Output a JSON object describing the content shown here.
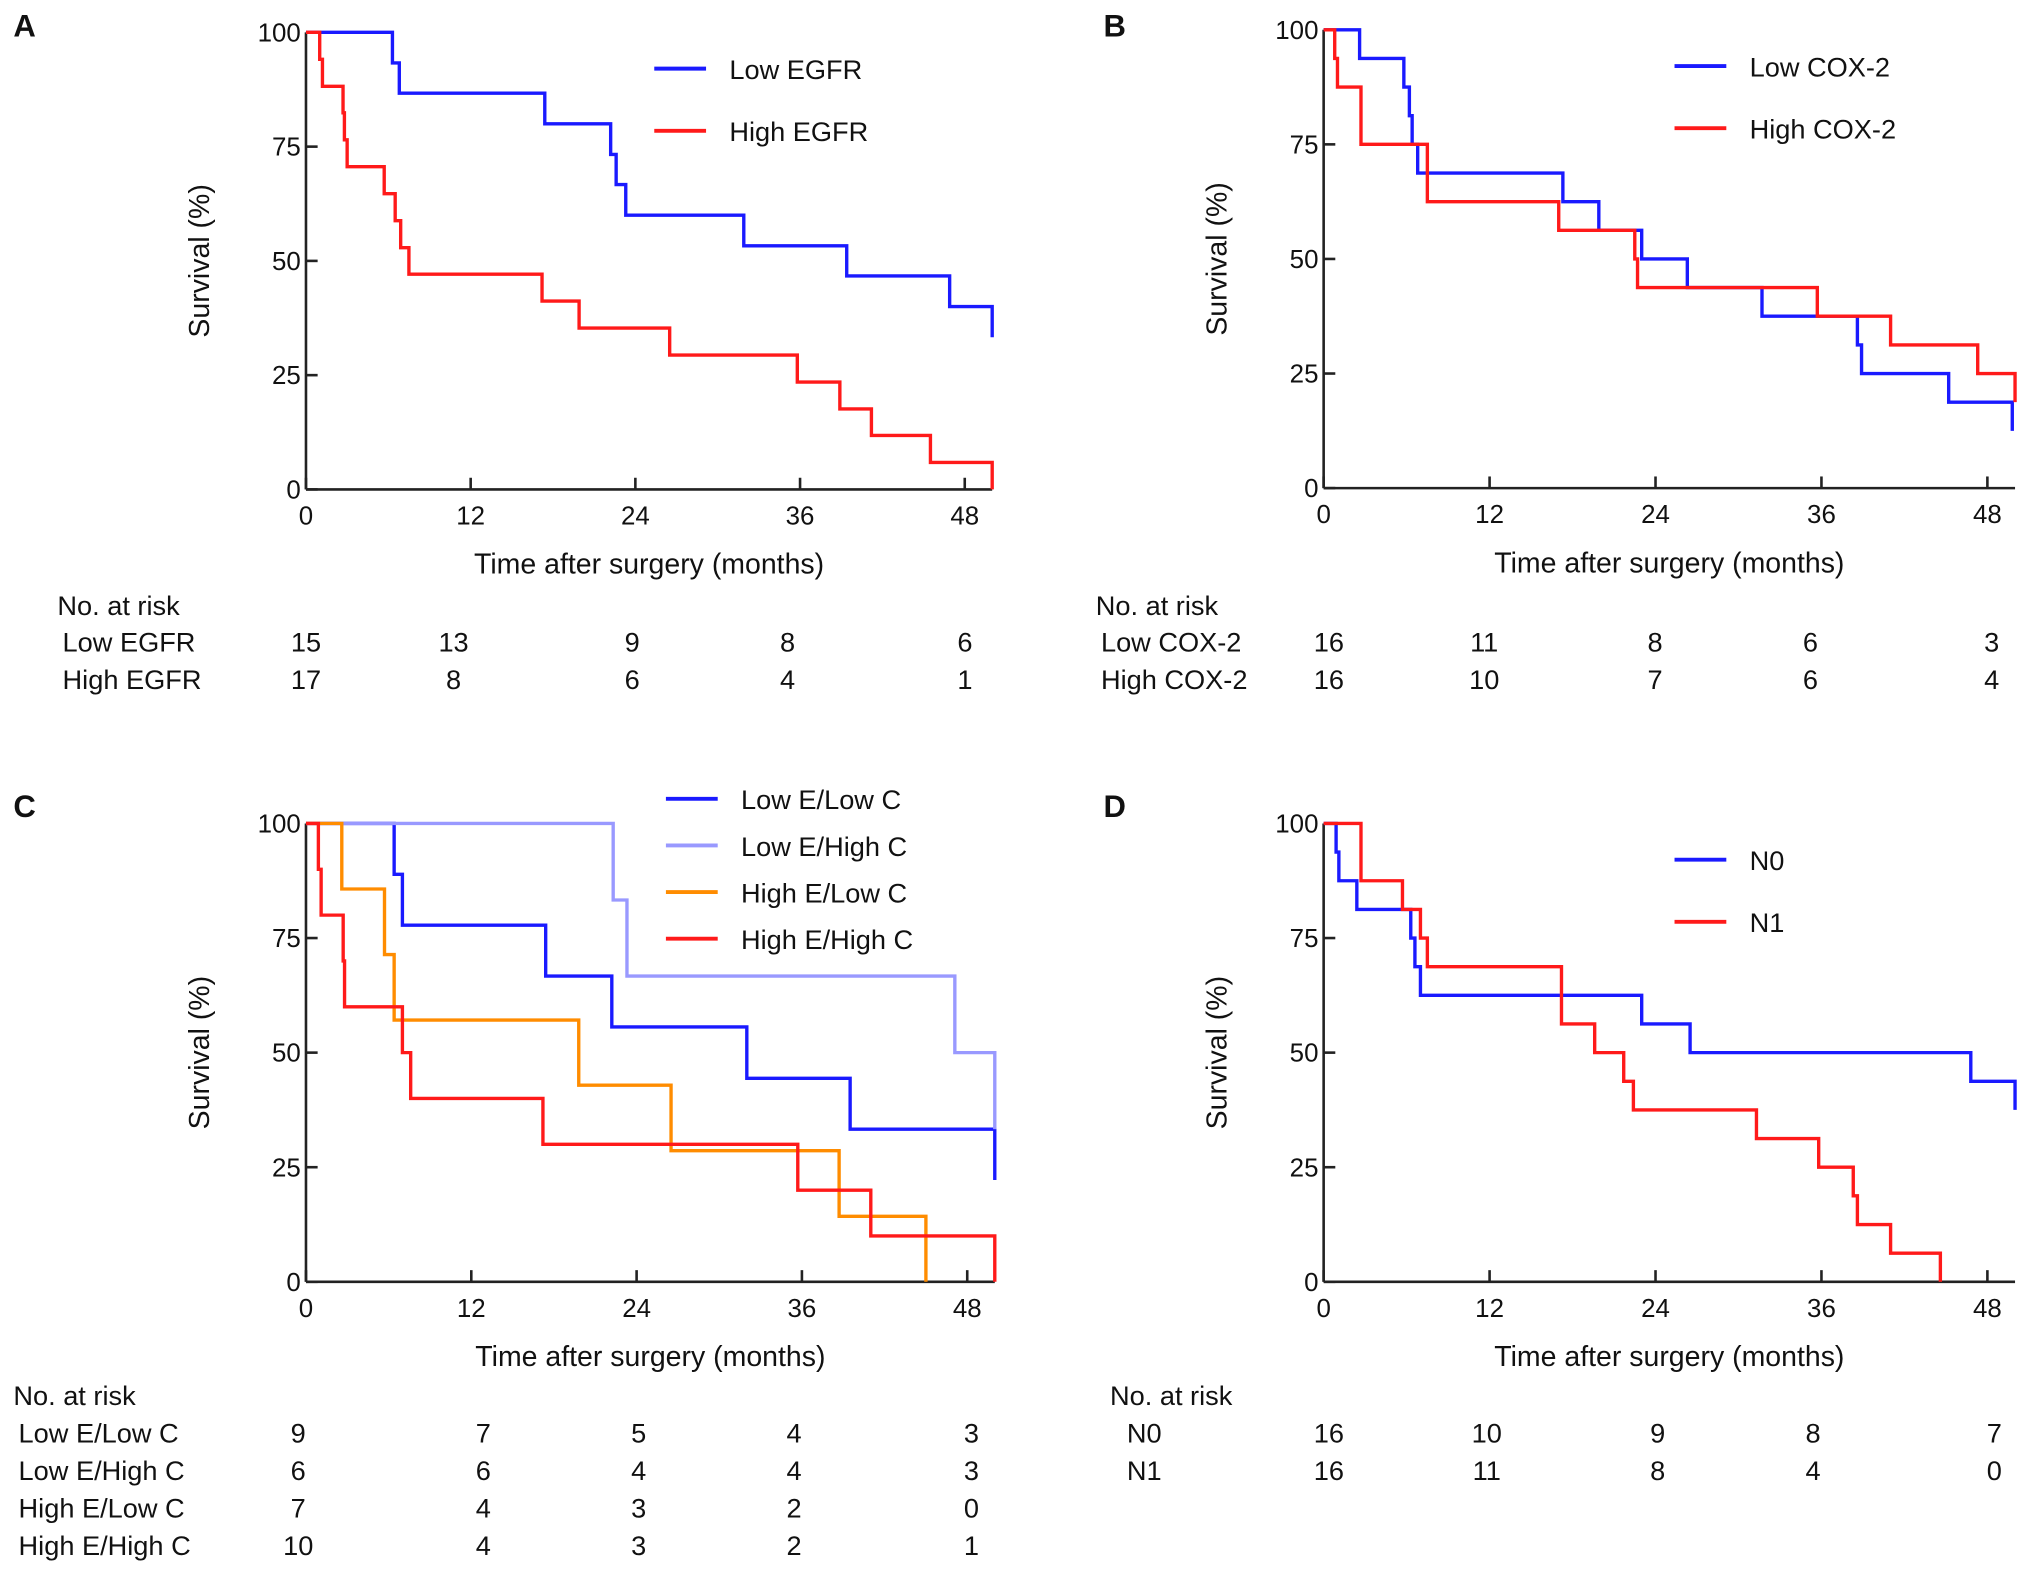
{
  "chart_data": [
    {
      "type": "line",
      "panel_label": "A",
      "xlabel": "Time after surgery (months)",
      "ylabel": "Survival (%)",
      "xticks": [
        "0",
        "12",
        "24",
        "36",
        "48"
      ],
      "yticks": [
        "0",
        "25",
        "50",
        "75",
        "100"
      ],
      "xlim": [
        0,
        50
      ],
      "ylim": [
        0,
        100
      ],
      "legend": "top-right",
      "series": [
        {
          "name": "Low EGFR",
          "color": "#1a1aff",
          "steps": [
            [
              0,
              100
            ],
            [
              6.3,
              93.3
            ],
            [
              6.8,
              86.7
            ],
            [
              17.4,
              80
            ],
            [
              22.2,
              73.3
            ],
            [
              22.6,
              66.7
            ],
            [
              23.3,
              60
            ],
            [
              31.9,
              53.3
            ],
            [
              39.4,
              46.7
            ],
            [
              46.9,
              40
            ],
            [
              50,
              33.3
            ]
          ]
        },
        {
          "name": "High EGFR",
          "color": "#ff1a1a",
          "steps": [
            [
              0,
              100
            ],
            [
              1,
              94.1
            ],
            [
              1.2,
              88.2
            ],
            [
              2.7,
              82.4
            ],
            [
              2.8,
              76.5
            ],
            [
              3,
              70.6
            ],
            [
              5.7,
              64.7
            ],
            [
              6.5,
              58.8
            ],
            [
              6.9,
              52.9
            ],
            [
              7.5,
              47.1
            ],
            [
              17.2,
              41.2
            ],
            [
              19.9,
              35.3
            ],
            [
              26.5,
              29.4
            ],
            [
              35.8,
              23.5
            ],
            [
              38.9,
              17.6
            ],
            [
              41.2,
              11.8
            ],
            [
              45.5,
              5.9
            ],
            [
              50,
              0
            ]
          ]
        }
      ],
      "risk": {
        "title": "No. at risk",
        "rows": [
          {
            "label": "Low EGFR",
            "values": [
              "15",
              "13",
              "9",
              "8",
              "6"
            ]
          },
          {
            "label": "High EGFR",
            "values": [
              "17",
              "8",
              "6",
              "4",
              "1"
            ]
          }
        ]
      }
    },
    {
      "type": "line",
      "panel_label": "B",
      "xlabel": "Time after surgery (months)",
      "ylabel": "Survival (%)",
      "xticks": [
        "0",
        "12",
        "24",
        "36",
        "48"
      ],
      "yticks": [
        "0",
        "25",
        "50",
        "75",
        "100"
      ],
      "xlim": [
        0,
        50
      ],
      "ylim": [
        0,
        100
      ],
      "legend": "top-right",
      "series": [
        {
          "name": "Low COX-2",
          "color": "#1a1aff",
          "steps": [
            [
              0,
              100
            ],
            [
              2.6,
              93.75
            ],
            [
              5.8,
              87.5
            ],
            [
              6.2,
              81.25
            ],
            [
              6.4,
              75
            ],
            [
              6.8,
              68.75
            ],
            [
              17.3,
              62.5
            ],
            [
              19.9,
              56.25
            ],
            [
              23,
              50
            ],
            [
              26.3,
              43.75
            ],
            [
              31.7,
              37.5
            ],
            [
              38.6,
              31.25
            ],
            [
              38.9,
              25
            ],
            [
              45.2,
              18.75
            ],
            [
              49.8,
              12.5
            ]
          ]
        },
        {
          "name": "High COX-2",
          "color": "#ff1a1a",
          "steps": [
            [
              0,
              100
            ],
            [
              0.8,
              93.75
            ],
            [
              1,
              87.5
            ],
            [
              2.7,
              75
            ],
            [
              7.5,
              62.5
            ],
            [
              17,
              56.25
            ],
            [
              22.5,
              50
            ],
            [
              22.7,
              43.75
            ],
            [
              35.7,
              37.5
            ],
            [
              41,
              31.25
            ],
            [
              47.3,
              25
            ],
            [
              50,
              18.75
            ]
          ]
        }
      ],
      "risk": {
        "title": "No. at risk",
        "rows": [
          {
            "label": "Low COX-2",
            "values": [
              "16",
              "11",
              "8",
              "6",
              "3"
            ]
          },
          {
            "label": "High COX-2",
            "values": [
              "16",
              "10",
              "7",
              "6",
              "4"
            ]
          }
        ]
      }
    },
    {
      "type": "line",
      "panel_label": "C",
      "xlabel": "Time after surgery (months)",
      "ylabel": "Survival (%)",
      "xticks": [
        "0",
        "12",
        "24",
        "36",
        "48"
      ],
      "yticks": [
        "0",
        "25",
        "50",
        "75",
        "100"
      ],
      "xlim": [
        0,
        50
      ],
      "ylim": [
        0,
        100
      ],
      "legend": "top-right",
      "series": [
        {
          "name": "Low E/Low C",
          "color": "#1a1aff",
          "steps": [
            [
              0,
              100
            ],
            [
              6.4,
              88.9
            ],
            [
              7,
              77.8
            ],
            [
              17.4,
              66.7
            ],
            [
              22.2,
              55.6
            ],
            [
              32,
              44.4
            ],
            [
              39.5,
              33.3
            ],
            [
              50,
              22.2
            ]
          ]
        },
        {
          "name": "Low E/High C",
          "color": "#9999ff",
          "steps": [
            [
              0,
              100
            ],
            [
              22.3,
              83.3
            ],
            [
              23.3,
              66.7
            ],
            [
              47.1,
              50
            ],
            [
              50,
              33.3
            ]
          ]
        },
        {
          "name": "High E/Low C",
          "color": "#ff8c00",
          "steps": [
            [
              0,
              100
            ],
            [
              2.6,
              85.7
            ],
            [
              5.7,
              71.4
            ],
            [
              6.4,
              57.1
            ],
            [
              19.8,
              42.9
            ],
            [
              26.5,
              28.6
            ],
            [
              38.7,
              14.3
            ],
            [
              45,
              0
            ]
          ]
        },
        {
          "name": "High E/High C",
          "color": "#ff1a1a",
          "steps": [
            [
              0,
              100
            ],
            [
              0.9,
              90
            ],
            [
              1.1,
              80
            ],
            [
              2.7,
              70
            ],
            [
              2.8,
              60
            ],
            [
              7,
              50
            ],
            [
              7.6,
              40
            ],
            [
              17.2,
              30
            ],
            [
              35.7,
              20
            ],
            [
              41,
              10
            ],
            [
              50,
              0
            ]
          ]
        }
      ],
      "risk": {
        "title": "No. at risk",
        "rows": [
          {
            "label": "Low E/Low C",
            "values": [
              "9",
              "7",
              "5",
              "4",
              "3"
            ]
          },
          {
            "label": "Low E/High C",
            "values": [
              "6",
              "6",
              "4",
              "4",
              "3"
            ]
          },
          {
            "label": "High E/Low C",
            "values": [
              "7",
              "4",
              "3",
              "2",
              "0"
            ]
          },
          {
            "label": "High E/High C",
            "values": [
              "10",
              "4",
              "3",
              "2",
              "1"
            ]
          }
        ]
      }
    },
    {
      "type": "line",
      "panel_label": "D",
      "xlabel": "Time after surgery (months)",
      "ylabel": "Survival (%)",
      "xticks": [
        "0",
        "12",
        "24",
        "36",
        "48"
      ],
      "yticks": [
        "0",
        "25",
        "50",
        "75",
        "100"
      ],
      "xlim": [
        0,
        50
      ],
      "ylim": [
        0,
        100
      ],
      "legend": "top-right",
      "series": [
        {
          "name": "N0",
          "color": "#1a1aff",
          "steps": [
            [
              0,
              100
            ],
            [
              0.9,
              93.75
            ],
            [
              1.1,
              87.5
            ],
            [
              2.4,
              81.25
            ],
            [
              6.3,
              75
            ],
            [
              6.6,
              68.75
            ],
            [
              7,
              62.5
            ],
            [
              23,
              56.25
            ],
            [
              26.5,
              50
            ],
            [
              46.8,
              43.75
            ],
            [
              50,
              37.5
            ]
          ]
        },
        {
          "name": "N1",
          "color": "#ff1a1a",
          "steps": [
            [
              0,
              100
            ],
            [
              2.7,
              87.5
            ],
            [
              5.7,
              81.25
            ],
            [
              7,
              75
            ],
            [
              7.5,
              68.75
            ],
            [
              17.2,
              56.25
            ],
            [
              19.6,
              50
            ],
            [
              21.7,
              43.75
            ],
            [
              22.4,
              37.5
            ],
            [
              31.3,
              31.25
            ],
            [
              35.8,
              25
            ],
            [
              38.3,
              18.75
            ],
            [
              38.6,
              12.5
            ],
            [
              41,
              6.25
            ],
            [
              44.6,
              0
            ]
          ]
        }
      ],
      "risk": {
        "title": "No. at risk",
        "rows": [
          {
            "label": "N0",
            "values": [
              "16",
              "10",
              "9",
              "8",
              "7"
            ]
          },
          {
            "label": "N1",
            "values": [
              "16",
              "11",
              "8",
              "4",
              "0"
            ]
          }
        ]
      }
    }
  ]
}
